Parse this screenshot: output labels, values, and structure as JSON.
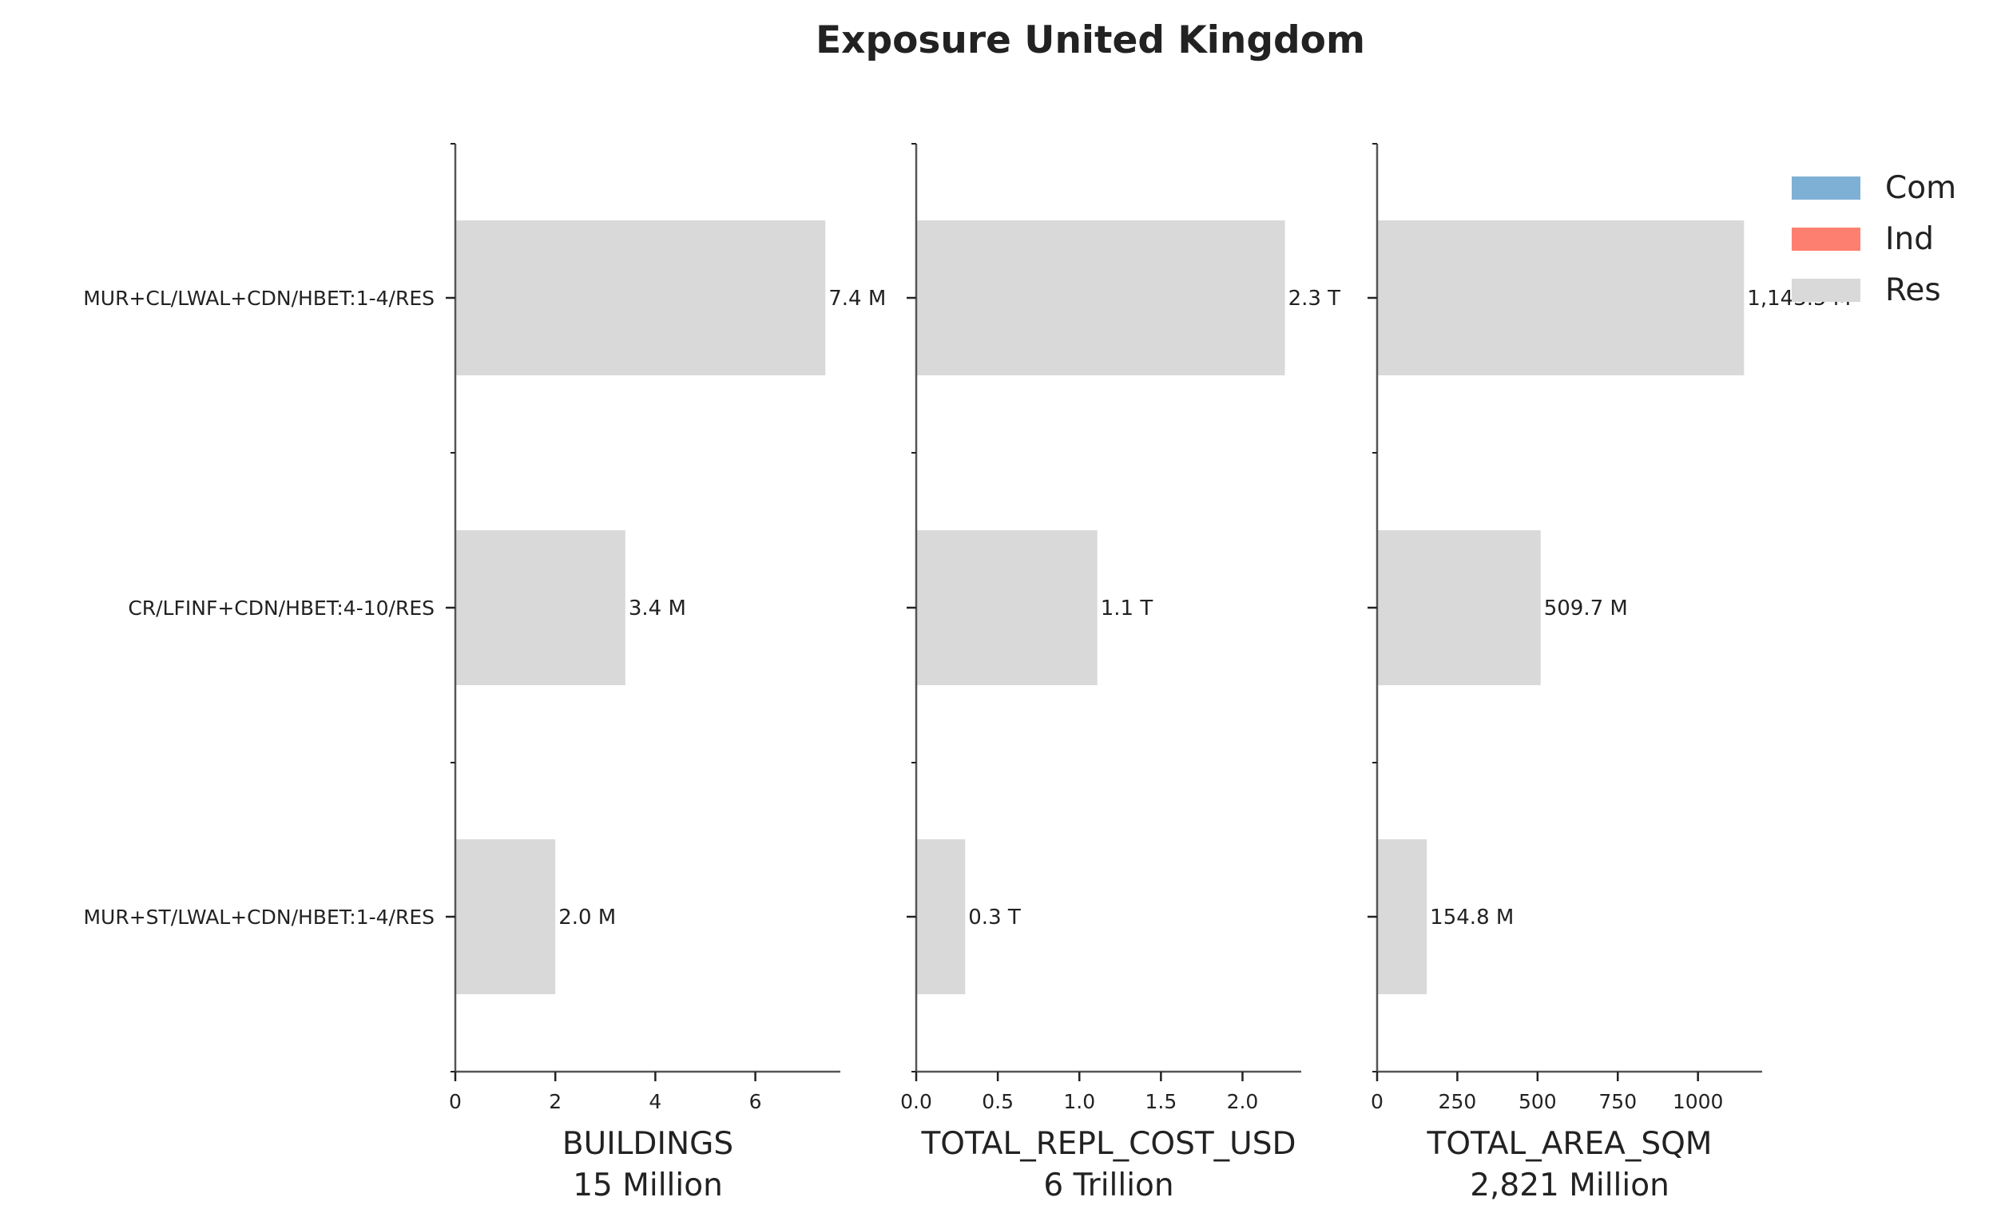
{
  "chart_data": {
    "type": "bar",
    "orientation": "horizontal",
    "title": "Exposure United Kingdom",
    "categories": [
      "MUR+CL/LWAL+CDN/HBET:1-4/RES",
      "CR/LFINF+CDN/HBET:4-10/RES",
      "MUR+ST/LWAL+CDN/HBET:1-4/RES"
    ],
    "legend": {
      "placement": "top-right",
      "items": [
        {
          "label": "Com",
          "color": "#7eb0d5"
        },
        {
          "label": "Ind",
          "color": "#fd7f6f"
        },
        {
          "label": "Res",
          "color": "#d9d9d9"
        }
      ]
    },
    "bar_color": "#d9d9d9",
    "axis_color": "#555555",
    "panels": [
      {
        "xlabel": "BUILDINGS",
        "total_label": "15 Million",
        "xlim": [
          0,
          7.7
        ],
        "xticks": [
          0,
          2,
          4,
          6
        ],
        "xtick_labels": [
          "0",
          "2",
          "4",
          "6"
        ],
        "series": [
          {
            "name": "Res",
            "values": [
              7.4,
              3.4,
              2.0
            ]
          }
        ],
        "value_labels": [
          "7.4 M",
          "3.4 M",
          "2.0 M"
        ]
      },
      {
        "xlabel": "TOTAL_REPL_COST_USD",
        "total_label": "6 Trillion",
        "xlim": [
          0,
          2.36
        ],
        "xticks": [
          0,
          0.5,
          1.0,
          1.5,
          2.0
        ],
        "xtick_labels": [
          "0.0",
          "0.5",
          "1.0",
          "1.5",
          "2.0"
        ],
        "series": [
          {
            "name": "Res",
            "values": [
              2.26,
              1.11,
              0.3
            ]
          }
        ],
        "value_labels": [
          "2.3 T",
          "1.1 T",
          "0.3 T"
        ]
      },
      {
        "xlabel": "TOTAL_AREA_SQM",
        "total_label": "2,821 Million",
        "xlim": [
          0,
          1200
        ],
        "xticks": [
          0,
          250,
          500,
          750,
          1000
        ],
        "xtick_labels": [
          "0",
          "250",
          "500",
          "750",
          "1000"
        ],
        "series": [
          {
            "name": "Res",
            "values": [
              1143.5,
              509.7,
              154.8
            ]
          }
        ],
        "value_labels": [
          "1,143.5 M",
          "509.7 M",
          "154.8 M"
        ]
      }
    ]
  }
}
